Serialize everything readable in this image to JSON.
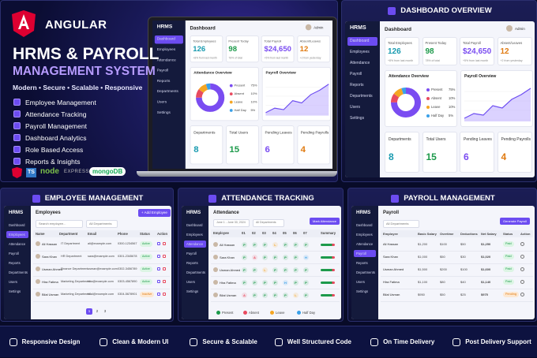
{
  "hero": {
    "brand": "ANGULAR",
    "title": "HRMS & PAYROLL",
    "subtitle": "MANAGEMENT SYSTEM",
    "tagline": "Modern • Secure • Scalable • Responsive",
    "features": [
      "Employee Management",
      "Attendance Tracking",
      "Payroll Management",
      "Dashboard Analytics",
      "Role Based Access",
      "Reports & Insights"
    ],
    "tech": [
      "TS",
      "node",
      "EXPRESS",
      "mongoDB"
    ]
  },
  "dashboard": {
    "title": "DASHBOARD OVERVIEW",
    "brand": "HRMS",
    "nav": [
      "Dashboard",
      "Employees",
      "Attendance",
      "Payroll",
      "Reports",
      "Departments",
      "Users",
      "Settings"
    ],
    "page": "Dashboard",
    "user": "Admin",
    "stats": [
      {
        "label": "Total Employees",
        "value": "126",
        "note": "+8% from last month"
      },
      {
        "label": "Present Today",
        "value": "98",
        "note": "78% of total"
      },
      {
        "label": "Total Payroll",
        "value": "$24,650",
        "note": "+5% from last month"
      },
      {
        "label": "Absent/Leaves",
        "value": "12",
        "note": "+2 from yesterday"
      }
    ],
    "attendance": {
      "title": "Attendance Overview",
      "legend": [
        {
          "name": "Present",
          "value": 75,
          "label": "75%"
        },
        {
          "name": "Absent",
          "value": 10,
          "label": "10%"
        },
        {
          "name": "Leave",
          "value": 10,
          "label": "10%"
        },
        {
          "name": "Half Day",
          "value": 5,
          "label": "5%"
        }
      ]
    },
    "payroll_title": "Payroll Overview",
    "summary": [
      {
        "label": "Departments",
        "value": "8"
      },
      {
        "label": "Total Users",
        "value": "15"
      },
      {
        "label": "Pending Leaves",
        "value": "6"
      },
      {
        "label": "Pending Payrolls",
        "value": "4"
      }
    ]
  },
  "employees": {
    "title": "EMPLOYEE MANAGEMENT",
    "page": "Employees",
    "button": "+ Add Employee",
    "search": "Search employee...",
    "filter": "All Departments",
    "columns": [
      "Name",
      "Department",
      "Email",
      "Phone",
      "Status",
      "Action"
    ],
    "rows": [
      [
        "Ali Hassan",
        "IT Department",
        "ali@example.com",
        "0300-1234567",
        "Active"
      ],
      [
        "Sara Khan",
        "HR Department",
        "sara@example.com",
        "0301-2345678",
        "Active"
      ],
      [
        "Usman Ahmed",
        "Finance Department",
        "usman@example.com",
        "0302-3456789",
        "Active"
      ],
      [
        "Hira Fatima",
        "Marketing Department",
        "hira@example.com",
        "0303-4567890",
        "Active"
      ],
      [
        "Bilal Usman",
        "Marketing Department",
        "bilal@example.com",
        "0304-5678901",
        "Inactive"
      ]
    ],
    "pages": [
      "1",
      "2",
      "3"
    ]
  },
  "attendance": {
    "title": "ATTENDANCE TRACKING",
    "page": "Attendance",
    "range": "June 1 - June 30, 2024",
    "filter": "All Departments",
    "button": "Mark Attendance",
    "columns": [
      "Employee",
      "01",
      "02",
      "03",
      "04",
      "05",
      "06",
      "07",
      "Summary"
    ],
    "rows": [
      {
        "name": "Ali Hassan",
        "marks": [
          "P",
          "P",
          "P",
          "L",
          "P",
          "P",
          "P"
        ]
      },
      {
        "name": "Sara Khan",
        "marks": [
          "P",
          "A",
          "P",
          "P",
          "P",
          "P",
          "H"
        ]
      },
      {
        "name": "Usman Ahmed",
        "marks": [
          "P",
          "P",
          "L",
          "P",
          "P",
          "P",
          "P"
        ]
      },
      {
        "name": "Hira Fatima",
        "marks": [
          "P",
          "P",
          "P",
          "P",
          "H",
          "P",
          "P"
        ]
      },
      {
        "name": "Bilal Usman",
        "marks": [
          "A",
          "P",
          "P",
          "P",
          "P",
          "L",
          "P"
        ]
      }
    ],
    "legend": [
      "Present",
      "Absent",
      "Leave",
      "Half Day"
    ]
  },
  "payroll": {
    "title": "PAYROLL MANAGEMENT",
    "page": "Payroll",
    "filter": "All Departments",
    "button": "Generate Payroll",
    "columns": [
      "Employee",
      "Basic Salary",
      "Overtime",
      "Deductions",
      "Net Salary",
      "Status",
      "Action"
    ],
    "rows": [
      [
        "Ali Hassan",
        "$1,200",
        "$100",
        "$50",
        "$1,250",
        "Paid"
      ],
      [
        "Sara Khan",
        "$1,000",
        "$50",
        "$30",
        "$1,020",
        "Paid"
      ],
      [
        "Usman Ahmed",
        "$1,500",
        "$200",
        "$100",
        "$1,600",
        "Paid"
      ],
      [
        "Hira Fatima",
        "$1,100",
        "$80",
        "$40",
        "$1,140",
        "Paid"
      ],
      [
        "Bilal Usman",
        "$950",
        "$50",
        "$25",
        "$975",
        "Pending"
      ]
    ]
  },
  "footer": [
    "Responsive Design",
    "Clean & Modern UI",
    "Secure & Scalable",
    "Well Structured Code",
    "On Time Delivery",
    "Post Delivery Support"
  ]
}
